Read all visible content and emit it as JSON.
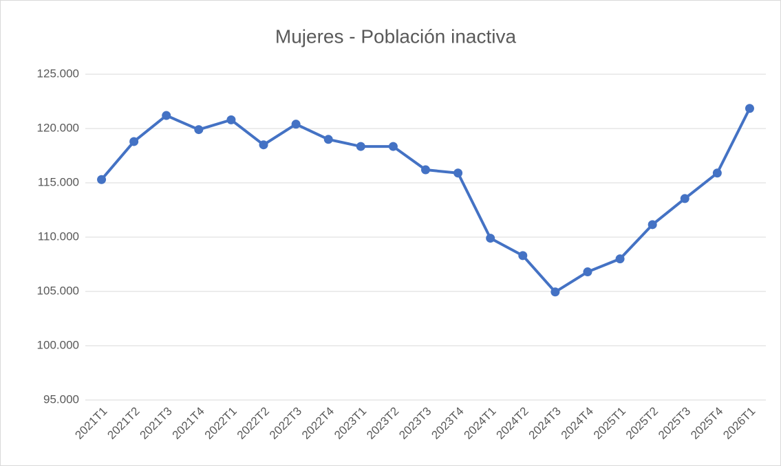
{
  "chart_data": {
    "type": "line",
    "title": "Mujeres - Población inactiva",
    "categories": [
      "2021T1",
      "2021T2",
      "2021T3",
      "2021T4",
      "2022T1",
      "2022T2",
      "2022T3",
      "2022T4",
      "2023T1",
      "2023T2",
      "2023T3",
      "2023T4",
      "2024T1",
      "2024T2",
      "2024T3",
      "2024T4",
      "2025T1",
      "2025T2",
      "2025T3",
      "2025T4",
      "2026T1"
    ],
    "series": [
      {
        "name": "Mujeres - Población inactiva",
        "color": "#4472c4",
        "values": [
          115300,
          118800,
          121200,
          119900,
          120800,
          118500,
          120400,
          119000,
          118350,
          118350,
          116200,
          115900,
          109900,
          108300,
          104950,
          106800,
          108000,
          111150,
          113550,
          115900,
          121850
        ]
      }
    ],
    "ylim": [
      95000,
      125000
    ],
    "yticks": [
      {
        "value": 95000,
        "label": "95.000"
      },
      {
        "value": 100000,
        "label": "100.000"
      },
      {
        "value": 105000,
        "label": "105.000"
      },
      {
        "value": 110000,
        "label": "110.000"
      },
      {
        "value": 115000,
        "label": "115.000"
      },
      {
        "value": 120000,
        "label": "120.000"
      },
      {
        "value": 125000,
        "label": "125.000"
      }
    ],
    "grid": true
  }
}
